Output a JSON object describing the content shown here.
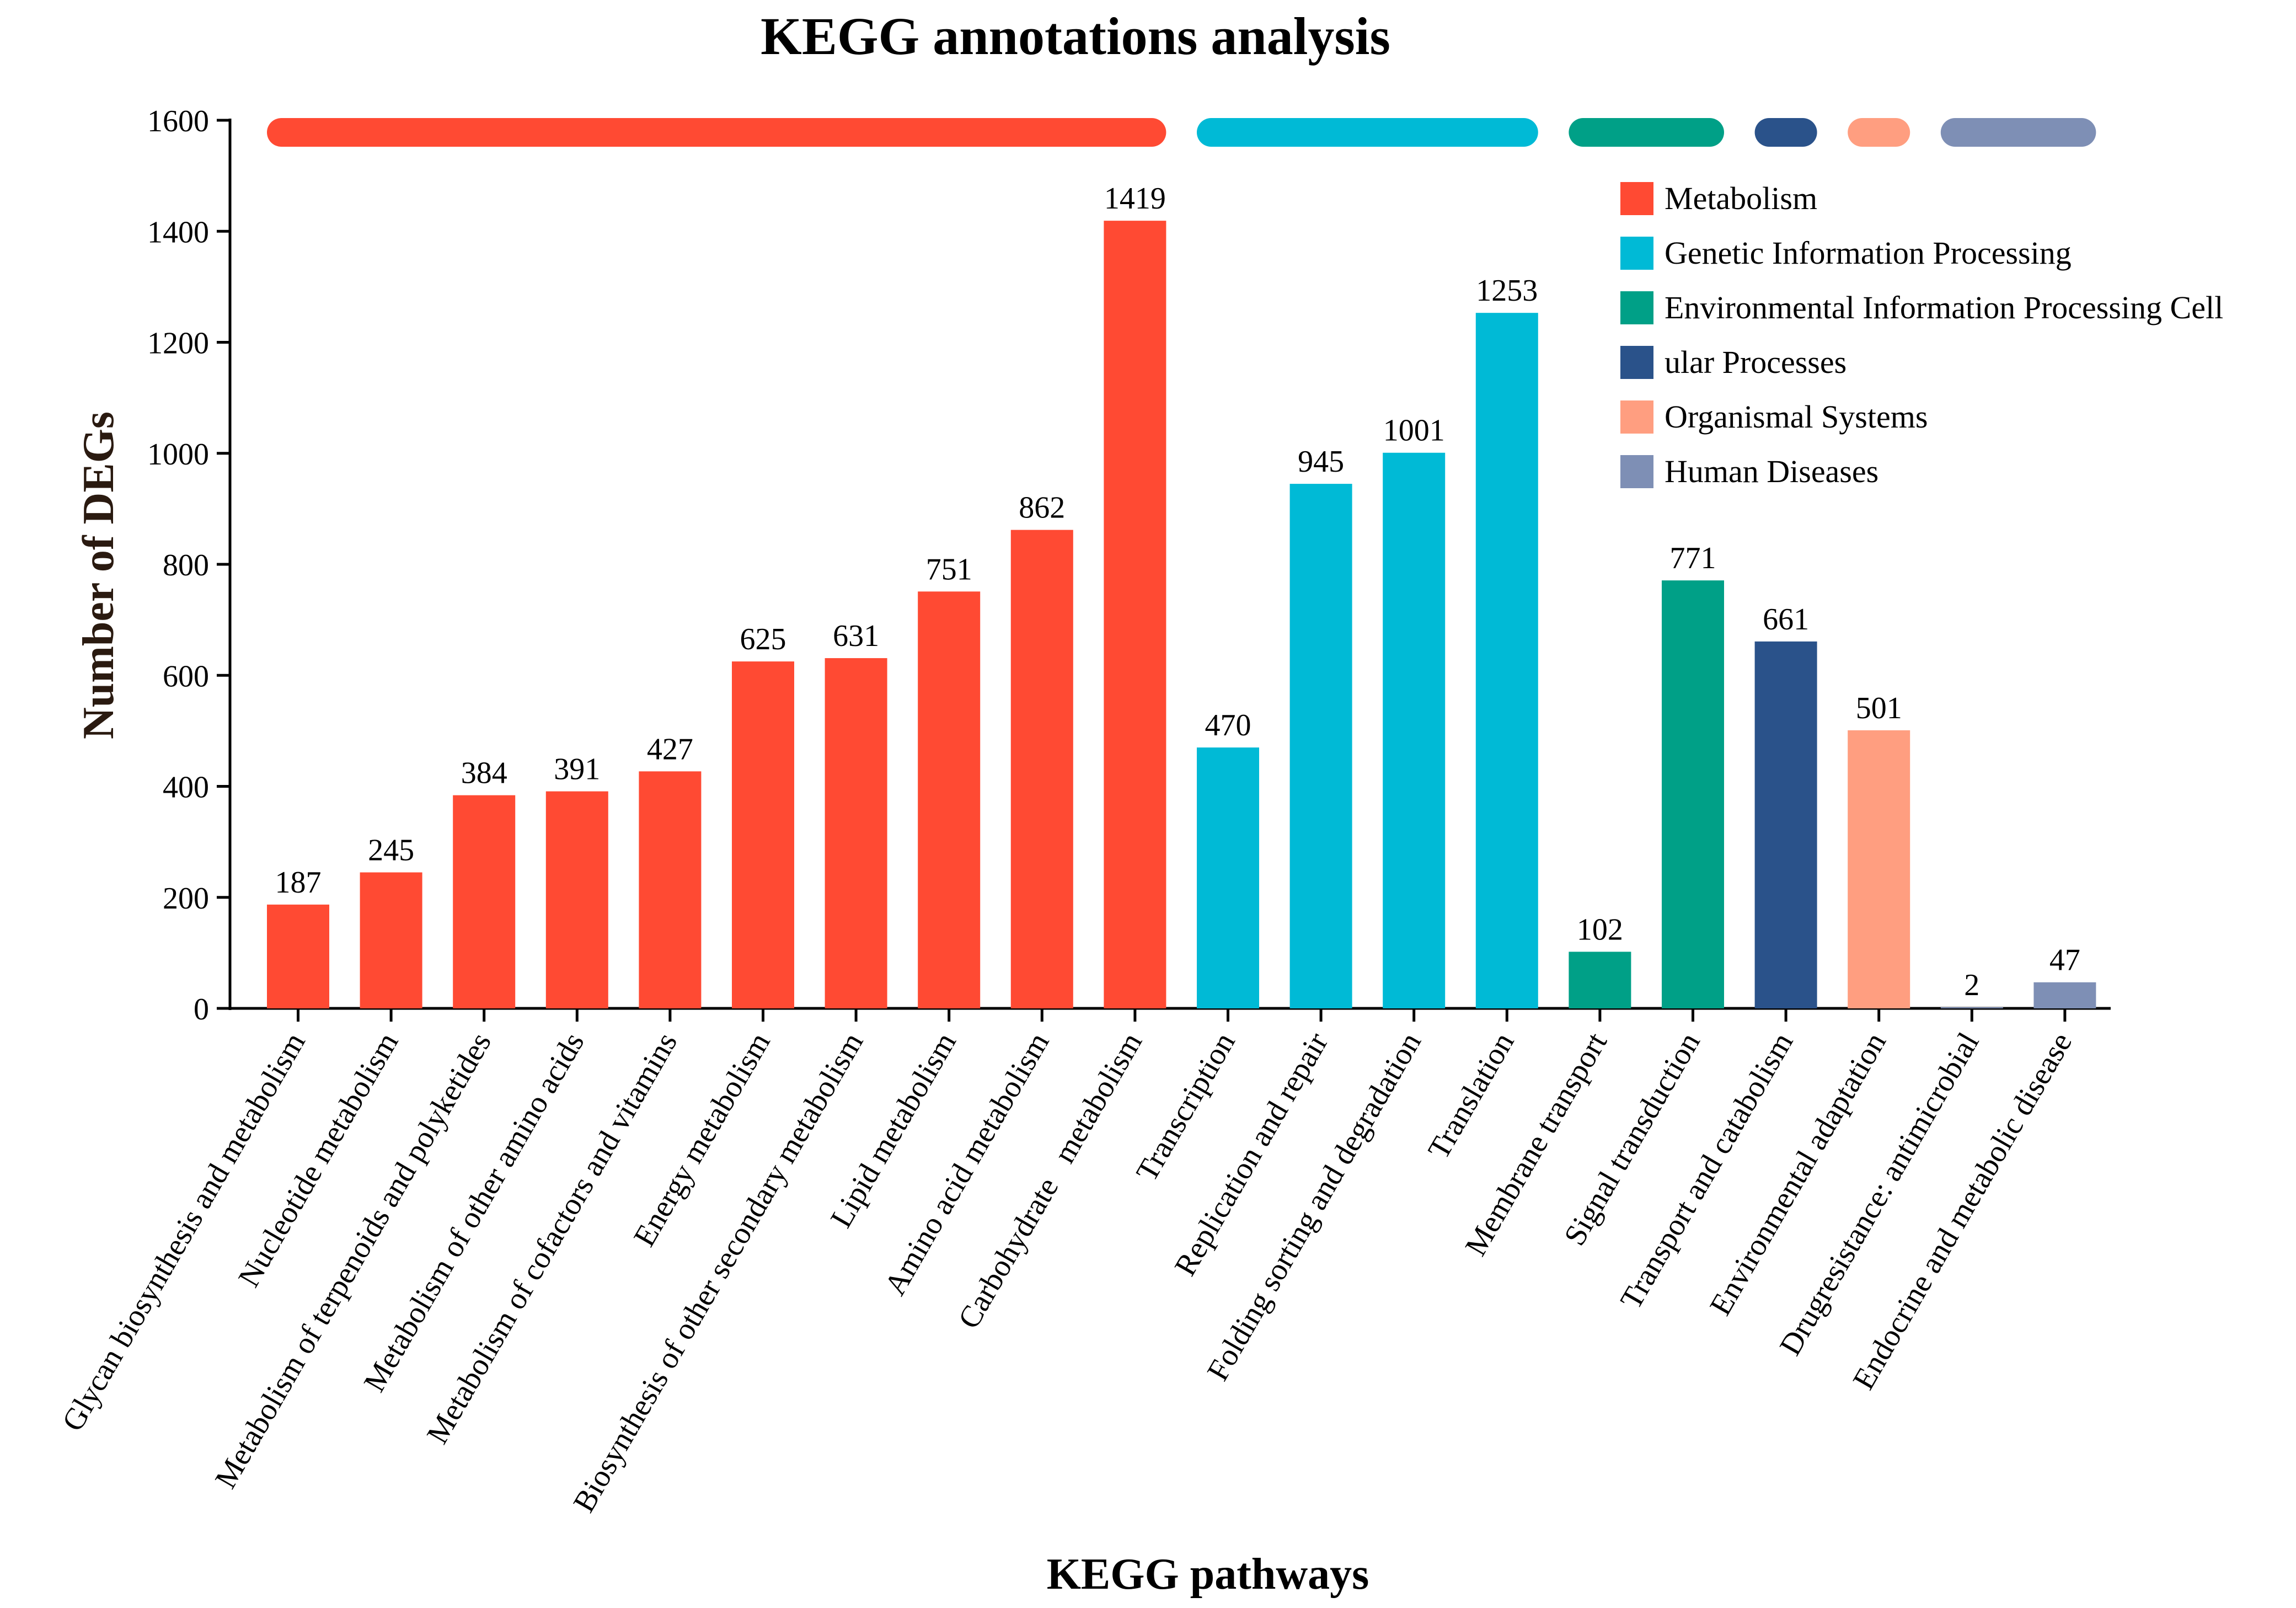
{
  "chart_data": {
    "type": "bar",
    "title": "KEGG annotations analysis",
    "xlabel": "KEGG pathways",
    "ylabel": "Number of DEGs",
    "ylim": [
      0,
      1600
    ],
    "yticks": [
      0,
      200,
      400,
      600,
      800,
      1000,
      1200,
      1400,
      1600
    ],
    "grid": false,
    "legend_position": "top-right",
    "groups": [
      {
        "name": "Metabolism",
        "color": "#FF4A33"
      },
      {
        "name": "Genetic Information Processing",
        "color": "#00BAD6"
      },
      {
        "name": "Environmental Information Processing Cell",
        "color": "#00A087"
      },
      {
        "name": "ular Processes",
        "color": "#2A528A"
      },
      {
        "name": "Organismal Systems",
        "color": "#FF9E80"
      },
      {
        "name": "Human Diseases",
        "color": "#7E8FB5"
      }
    ],
    "categories": [
      "Glycan biosynthesis and metabolism",
      "Nucleotide metabolism",
      "Metabolism of terpenoids and polyketides",
      "Metabolism of other amino acids",
      "Metabolism of cofactors and vitamins",
      "Energy metabolism",
      "Biosynthesis of other secondary metabolism",
      "Lipid metabolism",
      "Amino acid metabolism",
      "Carbohydrate   metabolism",
      "Transcription",
      "Replication and repair",
      "Folding sorting and degradation",
      "Translation",
      "Membrane transport",
      "Signal transduction",
      "Transport and catabolism",
      "Environmental adaptation",
      "Drugresistance: antimicrobial",
      "Endocrine and metabolic disease"
    ],
    "values": [
      187,
      245,
      384,
      391,
      427,
      625,
      631,
      751,
      862,
      1419,
      470,
      945,
      1001,
      1253,
      102,
      771,
      661,
      501,
      2,
      47
    ],
    "category_group": [
      0,
      0,
      0,
      0,
      0,
      0,
      0,
      0,
      0,
      0,
      1,
      1,
      1,
      1,
      2,
      2,
      3,
      4,
      5,
      5
    ],
    "group_bars": [
      {
        "group": 0,
        "first": 0,
        "last": 9
      },
      {
        "group": 1,
        "first": 10,
        "last": 13
      },
      {
        "group": 2,
        "first": 14,
        "last": 15
      },
      {
        "group": 3,
        "first": 16,
        "last": 16
      },
      {
        "group": 4,
        "first": 17,
        "last": 17
      },
      {
        "group": 5,
        "first": 18,
        "last": 19
      }
    ]
  }
}
